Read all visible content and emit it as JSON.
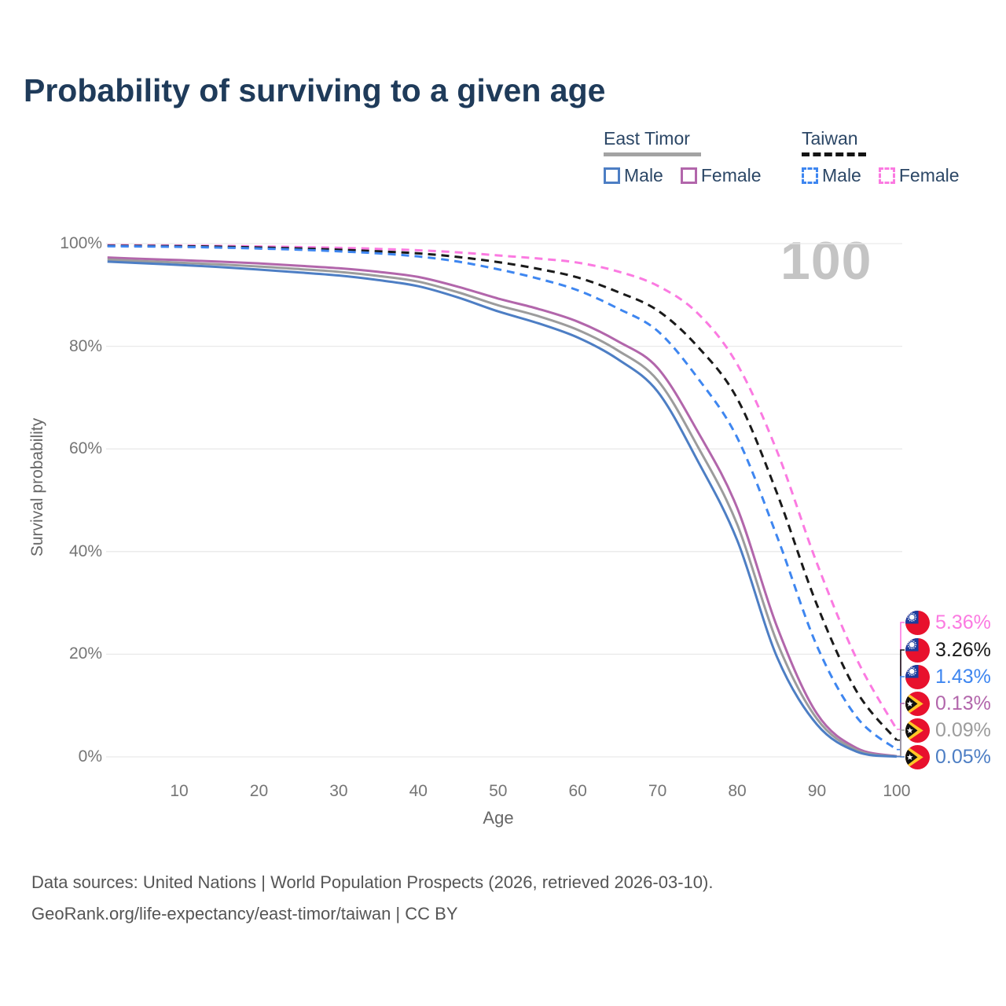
{
  "title": "Probability of surviving to a given age",
  "watermark": "100",
  "legend": {
    "groups": [
      {
        "label": "East Timor",
        "line_style": "solid",
        "line_color": "#a3a3a3",
        "items": [
          {
            "label": "Male",
            "color": "#4d7ec4",
            "dashed": false
          },
          {
            "label": "Female",
            "color": "#b266ab",
            "dashed": false
          }
        ]
      },
      {
        "label": "Taiwan",
        "line_style": "dashed",
        "line_color": "#141414",
        "items": [
          {
            "label": "Male",
            "color": "#3e86f0",
            "dashed": true
          },
          {
            "label": "Female",
            "color": "#fb7ae1",
            "dashed": true
          }
        ]
      }
    ]
  },
  "y_axis": {
    "label": "Survival probability",
    "ticks": [
      {
        "value": 0,
        "label": "0%"
      },
      {
        "value": 20,
        "label": "20%"
      },
      {
        "value": 40,
        "label": "40%"
      },
      {
        "value": 60,
        "label": "60%"
      },
      {
        "value": 80,
        "label": "80%"
      },
      {
        "value": 100,
        "label": "100%"
      }
    ]
  },
  "x_axis": {
    "label": "Age",
    "ticks": [
      10,
      20,
      30,
      40,
      50,
      60,
      70,
      80,
      90,
      100
    ]
  },
  "footer": {
    "line1": "Data sources: United Nations | World Population Prospects (2026, retrieved 2026-03-10).",
    "line2": "GeoRank.org/life-expectancy/east-timor/taiwan | CC BY"
  },
  "chart_data": {
    "type": "line",
    "title": "Probability of surviving to a given age",
    "xlabel": "Age",
    "ylabel": "Survival probability",
    "xlim": [
      0,
      100
    ],
    "ylim": [
      0,
      100
    ],
    "grid": true,
    "legend_position": "top-right",
    "x": [
      1,
      5,
      10,
      15,
      20,
      25,
      30,
      35,
      40,
      45,
      50,
      55,
      60,
      65,
      70,
      75,
      80,
      85,
      90,
      95,
      100
    ],
    "series": [
      {
        "name": "Taiwan Female",
        "country": "Taiwan",
        "sex": "Female",
        "style": "dashed",
        "color": "#fb7ae1",
        "flag": "taiwan",
        "end_label": "5.36%",
        "values": [
          99.7,
          99.67,
          99.62,
          99.55,
          99.45,
          99.33,
          99.18,
          98.98,
          98.7,
          98.3,
          97.7,
          97.1,
          96.3,
          94.6,
          91.8,
          86.5,
          76.5,
          59.5,
          37.7,
          19.0,
          5.36
        ]
      },
      {
        "name": "Taiwan",
        "country": "Taiwan",
        "sex": "All",
        "style": "dashed",
        "color": "#1a1a1a",
        "flag": "taiwan",
        "end_label": "3.26%",
        "values": [
          99.6,
          99.56,
          99.5,
          99.4,
          99.25,
          99.06,
          98.82,
          98.5,
          98.1,
          97.4,
          96.4,
          95.1,
          93.4,
          90.6,
          87.0,
          80.0,
          69.8,
          51.3,
          29.6,
          12.7,
          3.26
        ]
      },
      {
        "name": "Taiwan Male",
        "country": "Taiwan",
        "sex": "Male",
        "style": "dashed",
        "color": "#3e86f0",
        "flag": "taiwan",
        "end_label": "1.43%",
        "values": [
          99.5,
          99.45,
          99.37,
          99.24,
          99.05,
          98.82,
          98.5,
          98.1,
          97.5,
          96.5,
          95.0,
          93.2,
          90.9,
          87.4,
          83.0,
          73.9,
          62.2,
          42.9,
          21.6,
          7.7,
          1.43
        ]
      },
      {
        "name": "East Timor Female",
        "country": "East Timor",
        "sex": "Female",
        "style": "solid",
        "color": "#b266ab",
        "flag": "east-timor",
        "end_label": "0.13%",
        "values": [
          97.3,
          97.05,
          96.8,
          96.5,
          96.15,
          95.7,
          95.2,
          94.5,
          93.5,
          91.6,
          89.3,
          87.3,
          84.8,
          81.0,
          75.8,
          63.5,
          48.5,
          25.3,
          8.4,
          1.7,
          0.13
        ]
      },
      {
        "name": "East Timor",
        "country": "East Timor",
        "sex": "All",
        "style": "solid",
        "color": "#9c9c9c",
        "flag": "east-timor",
        "end_label": "0.09%",
        "values": [
          96.9,
          96.62,
          96.3,
          95.95,
          95.55,
          95.05,
          94.5,
          93.7,
          92.6,
          90.5,
          88.0,
          85.9,
          83.2,
          79.2,
          73.4,
          60.6,
          45.3,
          22.3,
          7.4,
          1.3,
          0.09
        ]
      },
      {
        "name": "East Timor Male",
        "country": "East Timor",
        "sex": "Male",
        "style": "solid",
        "color": "#4d7ec4",
        "flag": "east-timor",
        "end_label": "0.05%",
        "values": [
          96.5,
          96.2,
          95.85,
          95.45,
          94.95,
          94.4,
          93.8,
          92.9,
          91.7,
          89.5,
          86.8,
          84.5,
          81.7,
          77.5,
          71.2,
          57.8,
          42.2,
          19.4,
          6.3,
          1.0,
          0.05
        ]
      }
    ]
  }
}
